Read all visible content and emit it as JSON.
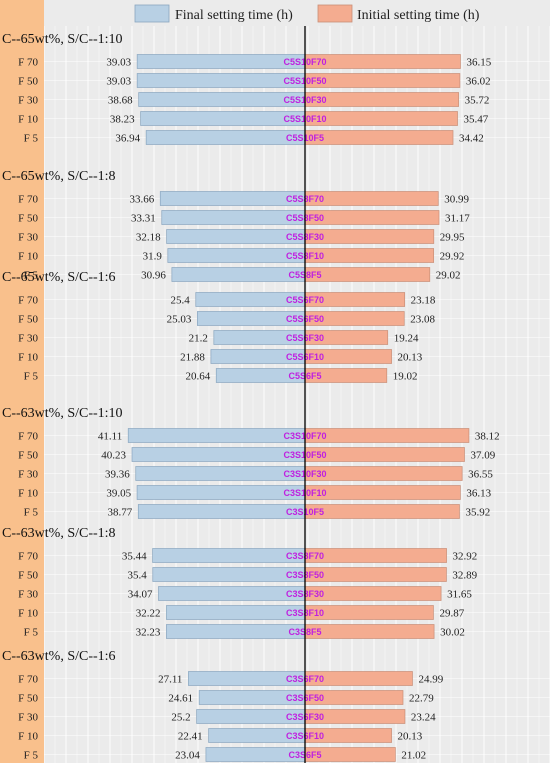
{
  "chart_data": {
    "type": "bar",
    "orientation": "horizontal-diverging",
    "legend_position": "top",
    "grid": true,
    "colors": {
      "final": "#b8d0e4",
      "initial": "#f4ac90",
      "side": "#f9c08c",
      "center_label": "#c020e0",
      "plot_bg": "#ebebeb",
      "grid": "#ffffff"
    },
    "series": [
      {
        "name": "Final setting time (h)",
        "side": "left"
      },
      {
        "name": "Initial setting time (h)",
        "side": "right"
      }
    ],
    "groups": [
      {
        "title": "C--65wt%, S/C--1:10",
        "rows": [
          {
            "label": "F 70",
            "code": "C5S10F70",
            "final": 39.03,
            "initial": 36.15
          },
          {
            "label": "F 50",
            "code": "C5S10F50",
            "final": 39.03,
            "initial": 36.02
          },
          {
            "label": "F 30",
            "code": "C5S10F30",
            "final": 38.68,
            "initial": 35.72
          },
          {
            "label": "F 10",
            "code": "C5S10F10",
            "final": 38.23,
            "initial": 35.47
          },
          {
            "label": "F 5",
            "code": "C5S10F5",
            "final": 36.94,
            "initial": 34.42
          }
        ]
      },
      {
        "title": "C--65wt%, S/C--1:8",
        "rows": [
          {
            "label": "F 70",
            "code": "C5S8F70",
            "final": 33.66,
            "initial": 30.99
          },
          {
            "label": "F 50",
            "code": "C5S8F50",
            "final": 33.31,
            "initial": 31.17
          },
          {
            "label": "F 30",
            "code": "C5S8F30",
            "final": 32.18,
            "initial": 29.95
          },
          {
            "label": "F 10",
            "code": "C5S8F10",
            "final": 31.9,
            "initial": 29.92
          },
          {
            "label": "F 5",
            "code": "C5S8F5",
            "final": 30.96,
            "initial": 29.02
          }
        ]
      },
      {
        "title": "C--65wt%, S/C--1:6",
        "rows": [
          {
            "label": "F 70",
            "code": "C5S6F70",
            "final": 25.4,
            "initial": 23.18
          },
          {
            "label": "F 50",
            "code": "C5S6F50",
            "final": 25.03,
            "initial": 23.08
          },
          {
            "label": "F 30",
            "code": "C5S6F30",
            "final": 21.2,
            "initial": 19.24
          },
          {
            "label": "F 10",
            "code": "C5S6F10",
            "final": 21.88,
            "initial": 20.13
          },
          {
            "label": "F 5",
            "code": "C5S6F5",
            "final": 20.64,
            "initial": 19.02
          }
        ]
      },
      {
        "title": "C--63wt%, S/C--1:10",
        "rows": [
          {
            "label": "F 70",
            "code": "C3S10F70",
            "final": 41.11,
            "initial": 38.12
          },
          {
            "label": "F 50",
            "code": "C3S10F50",
            "final": 40.23,
            "initial": 37.09
          },
          {
            "label": "F 30",
            "code": "C3S10F30",
            "final": 39.36,
            "initial": 36.55
          },
          {
            "label": "F 10",
            "code": "C3S10F10",
            "final": 39.05,
            "initial": 36.13
          },
          {
            "label": "F 5",
            "code": "C3S10F5",
            "final": 38.77,
            "initial": 35.92
          }
        ]
      },
      {
        "title": "C--63wt%, S/C--1:8",
        "rows": [
          {
            "label": "F 70",
            "code": "C3S8F70",
            "final": 35.44,
            "initial": 32.92
          },
          {
            "label": "F 50",
            "code": "C3S8F50",
            "final": 35.4,
            "initial": 32.89
          },
          {
            "label": "F 30",
            "code": "C3S8F30",
            "final": 34.07,
            "initial": 31.65
          },
          {
            "label": "F 10",
            "code": "C3S8F10",
            "final": 32.22,
            "initial": 29.87
          },
          {
            "label": "F 5",
            "code": "C3S8F5",
            "final": 32.23,
            "initial": 30.02
          }
        ]
      },
      {
        "title": "C--63wt%, S/C--1:6",
        "rows": [
          {
            "label": "F 70",
            "code": "C3S6F70",
            "final": 27.11,
            "initial": 24.99
          },
          {
            "label": "F 50",
            "code": "C3S6F50",
            "final": 24.61,
            "initial": 22.79
          },
          {
            "label": "F 30",
            "code": "C3S6F30",
            "final": 25.2,
            "initial": 23.24
          },
          {
            "label": "F 10",
            "code": "C3S6F10",
            "final": 22.41,
            "initial": 20.13
          },
          {
            "label": "F 5",
            "code": "C3S6F5",
            "final": 23.04,
            "initial": 21.02
          }
        ]
      }
    ]
  }
}
